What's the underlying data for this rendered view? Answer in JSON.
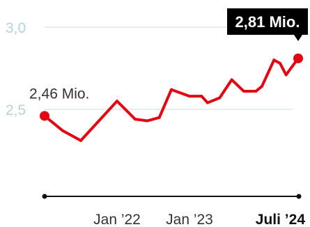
{
  "chart_data": {
    "type": "line",
    "title": "",
    "xlabel": "",
    "ylabel": "",
    "ylim": [
      2.0,
      3.0
    ],
    "yticks": [
      2.5,
      3.0
    ],
    "ytick_labels": [
      "2,5",
      "3,0"
    ],
    "grid": "horizontal",
    "xticks": [
      {
        "x": "2022-01",
        "label": "Jan ’22",
        "bold": false
      },
      {
        "x": "2023-01",
        "label": "Jan ’23",
        "bold": false
      },
      {
        "x": "2024-07",
        "label": "Juli ’24",
        "bold": true
      }
    ],
    "series": [
      {
        "color": "#e30613",
        "x": [
          "2021-01",
          "2021-04",
          "2021-07",
          "2021-10",
          "2022-01",
          "2022-04",
          "2022-06",
          "2022-08",
          "2022-10",
          "2023-01",
          "2023-03",
          "2023-04",
          "2023-06",
          "2023-08",
          "2023-10",
          "2023-12",
          "2024-01",
          "2024-03",
          "2024-04",
          "2024-05",
          "2024-07"
        ],
        "values": [
          2.46,
          2.37,
          2.31,
          2.43,
          2.55,
          2.44,
          2.43,
          2.45,
          2.62,
          2.58,
          2.58,
          2.54,
          2.57,
          2.68,
          2.61,
          2.61,
          2.64,
          2.8,
          2.78,
          2.71,
          2.81
        ]
      }
    ],
    "annotations": [
      {
        "point": "first",
        "text": "2,46 Mio."
      },
      {
        "point": "last",
        "text": "2,81 Mio.",
        "style": "black-callout"
      }
    ],
    "axis_color": "#111111"
  }
}
